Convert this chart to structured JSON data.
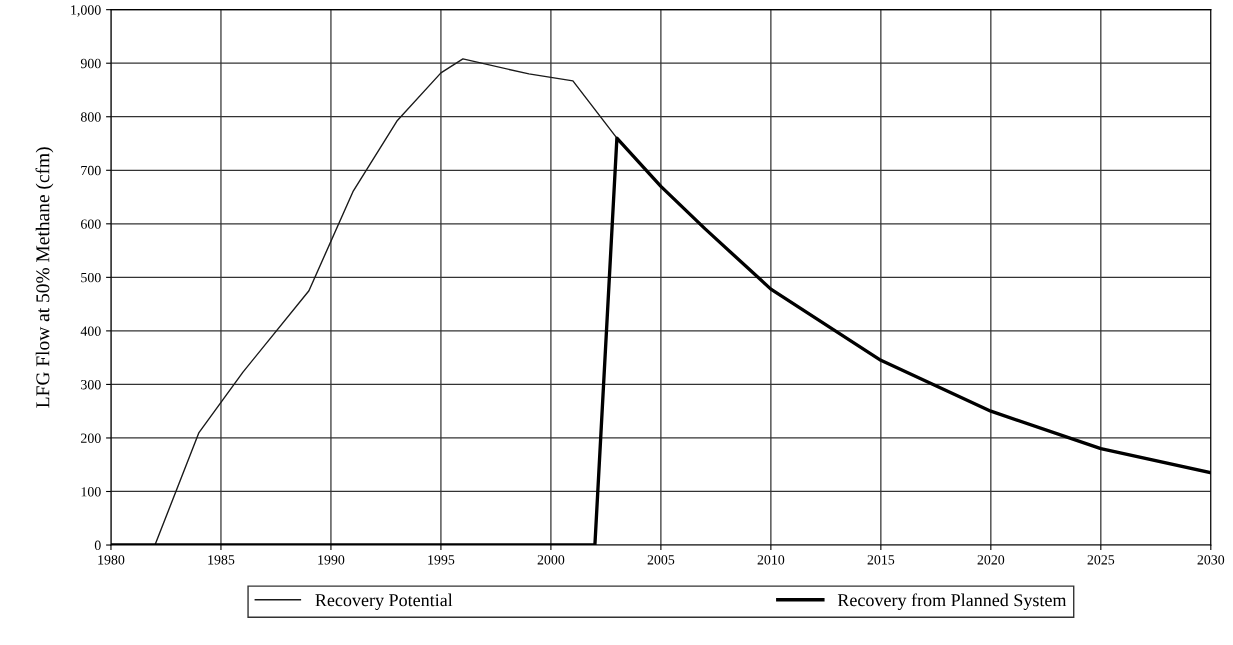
{
  "chart_data": {
    "type": "line",
    "ylabel": "LFG Flow at 50% Methane (cfm)",
    "xlim": [
      1980,
      2030
    ],
    "xticks": [
      1980,
      1985,
      1990,
      1995,
      2000,
      2005,
      2010,
      2015,
      2020,
      2025,
      2030
    ],
    "ylim": [
      0,
      1000
    ],
    "yticks": [
      0,
      100,
      200,
      300,
      400,
      500,
      600,
      700,
      800,
      900,
      {
        "value": 1000,
        "label": "1,000"
      }
    ],
    "grid": true,
    "legend": "bottom",
    "marker": "none",
    "line_style": "solid",
    "series": [
      {
        "name": "Recovery Potential",
        "color": "#1a1a1a",
        "x": [
          1982,
          1984,
          1986,
          1989,
          1991,
          1993,
          1995,
          1996,
          1999,
          2001,
          2003,
          2005,
          2007,
          2010,
          2015,
          2020,
          2025,
          2030
        ],
        "values": [
          0,
          210,
          323,
          475,
          660,
          792,
          882,
          908,
          880,
          867,
          760,
          670,
          591,
          478,
          345,
          250,
          180,
          135
        ]
      },
      {
        "name": "Recovery from Planned System",
        "color": "#000000",
        "x": [
          1980,
          2002,
          2003,
          2005,
          2007,
          2010,
          2015,
          2020,
          2025,
          2030
        ],
        "values": [
          0,
          0,
          760,
          670,
          591,
          478,
          345,
          250,
          180,
          135
        ]
      }
    ]
  }
}
